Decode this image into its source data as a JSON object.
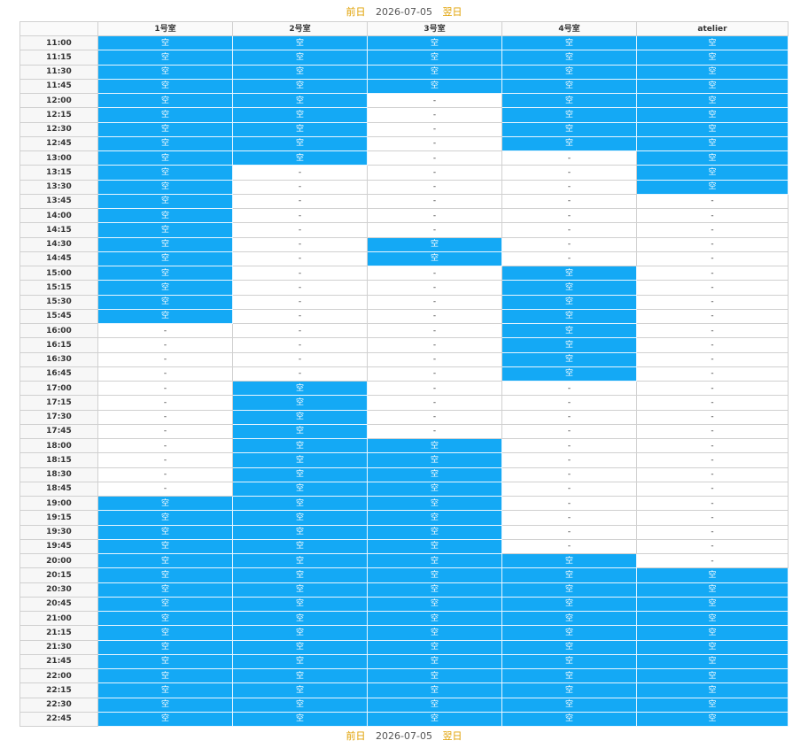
{
  "nav": {
    "prev": "前日",
    "date": "2026-07-05",
    "next": "翌日"
  },
  "table": {
    "rooms": [
      "1号室",
      "2号室",
      "3号室",
      "4号室",
      "atelier"
    ],
    "rows": [
      {
        "time": "11:00",
        "cells": [
          "空",
          "空",
          "空",
          "空",
          "空"
        ]
      },
      {
        "time": "11:15",
        "cells": [
          "空",
          "空",
          "空",
          "空",
          "空"
        ]
      },
      {
        "time": "11:30",
        "cells": [
          "空",
          "空",
          "空",
          "空",
          "空"
        ]
      },
      {
        "time": "11:45",
        "cells": [
          "空",
          "空",
          "空",
          "空",
          "空"
        ]
      },
      {
        "time": "12:00",
        "cells": [
          "空",
          "空",
          "-",
          "空",
          "空"
        ]
      },
      {
        "time": "12:15",
        "cells": [
          "空",
          "空",
          "-",
          "空",
          "空"
        ]
      },
      {
        "time": "12:30",
        "cells": [
          "空",
          "空",
          "-",
          "空",
          "空"
        ]
      },
      {
        "time": "12:45",
        "cells": [
          "空",
          "空",
          "-",
          "空",
          "空"
        ]
      },
      {
        "time": "13:00",
        "cells": [
          "空",
          "空",
          "-",
          "-",
          "空"
        ]
      },
      {
        "time": "13:15",
        "cells": [
          "空",
          "-",
          "-",
          "-",
          "空"
        ]
      },
      {
        "time": "13:30",
        "cells": [
          "空",
          "-",
          "-",
          "-",
          "空"
        ]
      },
      {
        "time": "13:45",
        "cells": [
          "空",
          "-",
          "-",
          "-",
          "-"
        ]
      },
      {
        "time": "14:00",
        "cells": [
          "空",
          "-",
          "-",
          "-",
          "-"
        ]
      },
      {
        "time": "14:15",
        "cells": [
          "空",
          "-",
          "-",
          "-",
          "-"
        ]
      },
      {
        "time": "14:30",
        "cells": [
          "空",
          "-",
          "空",
          "-",
          "-"
        ]
      },
      {
        "time": "14:45",
        "cells": [
          "空",
          "-",
          "空",
          "-",
          "-"
        ]
      },
      {
        "time": "15:00",
        "cells": [
          "空",
          "-",
          "-",
          "空",
          "-"
        ]
      },
      {
        "time": "15:15",
        "cells": [
          "空",
          "-",
          "-",
          "空",
          "-"
        ]
      },
      {
        "time": "15:30",
        "cells": [
          "空",
          "-",
          "-",
          "空",
          "-"
        ]
      },
      {
        "time": "15:45",
        "cells": [
          "空",
          "-",
          "-",
          "空",
          "-"
        ]
      },
      {
        "time": "16:00",
        "cells": [
          "-",
          "-",
          "-",
          "空",
          "-"
        ]
      },
      {
        "time": "16:15",
        "cells": [
          "-",
          "-",
          "-",
          "空",
          "-"
        ]
      },
      {
        "time": "16:30",
        "cells": [
          "-",
          "-",
          "-",
          "空",
          "-"
        ]
      },
      {
        "time": "16:45",
        "cells": [
          "-",
          "-",
          "-",
          "空",
          "-"
        ]
      },
      {
        "time": "17:00",
        "cells": [
          "-",
          "空",
          "-",
          "-",
          "-"
        ]
      },
      {
        "time": "17:15",
        "cells": [
          "-",
          "空",
          "-",
          "-",
          "-"
        ]
      },
      {
        "time": "17:30",
        "cells": [
          "-",
          "空",
          "-",
          "-",
          "-"
        ]
      },
      {
        "time": "17:45",
        "cells": [
          "-",
          "空",
          "-",
          "-",
          "-"
        ]
      },
      {
        "time": "18:00",
        "cells": [
          "-",
          "空",
          "空",
          "-",
          "-"
        ]
      },
      {
        "time": "18:15",
        "cells": [
          "-",
          "空",
          "空",
          "-",
          "-"
        ]
      },
      {
        "time": "18:30",
        "cells": [
          "-",
          "空",
          "空",
          "-",
          "-"
        ]
      },
      {
        "time": "18:45",
        "cells": [
          "-",
          "空",
          "空",
          "-",
          "-"
        ]
      },
      {
        "time": "19:00",
        "cells": [
          "空",
          "空",
          "空",
          "-",
          "-"
        ]
      },
      {
        "time": "19:15",
        "cells": [
          "空",
          "空",
          "空",
          "-",
          "-"
        ]
      },
      {
        "time": "19:30",
        "cells": [
          "空",
          "空",
          "空",
          "-",
          "-"
        ]
      },
      {
        "time": "19:45",
        "cells": [
          "空",
          "空",
          "空",
          "-",
          "-"
        ]
      },
      {
        "time": "20:00",
        "cells": [
          "空",
          "空",
          "空",
          "空",
          "-"
        ]
      },
      {
        "time": "20:15",
        "cells": [
          "空",
          "空",
          "空",
          "空",
          "空"
        ]
      },
      {
        "time": "20:30",
        "cells": [
          "空",
          "空",
          "空",
          "空",
          "空"
        ]
      },
      {
        "time": "20:45",
        "cells": [
          "空",
          "空",
          "空",
          "空",
          "空"
        ]
      },
      {
        "time": "21:00",
        "cells": [
          "空",
          "空",
          "空",
          "空",
          "空"
        ]
      },
      {
        "time": "21:15",
        "cells": [
          "空",
          "空",
          "空",
          "空",
          "空"
        ]
      },
      {
        "time": "21:30",
        "cells": [
          "空",
          "空",
          "空",
          "空",
          "空"
        ]
      },
      {
        "time": "21:45",
        "cells": [
          "空",
          "空",
          "空",
          "空",
          "空"
        ]
      },
      {
        "time": "22:00",
        "cells": [
          "空",
          "空",
          "空",
          "空",
          "空"
        ]
      },
      {
        "time": "22:15",
        "cells": [
          "空",
          "空",
          "空",
          "空",
          "空"
        ]
      },
      {
        "time": "22:30",
        "cells": [
          "空",
          "空",
          "空",
          "空",
          "空"
        ]
      },
      {
        "time": "22:45",
        "cells": [
          "空",
          "空",
          "空",
          "空",
          "空"
        ]
      }
    ]
  }
}
